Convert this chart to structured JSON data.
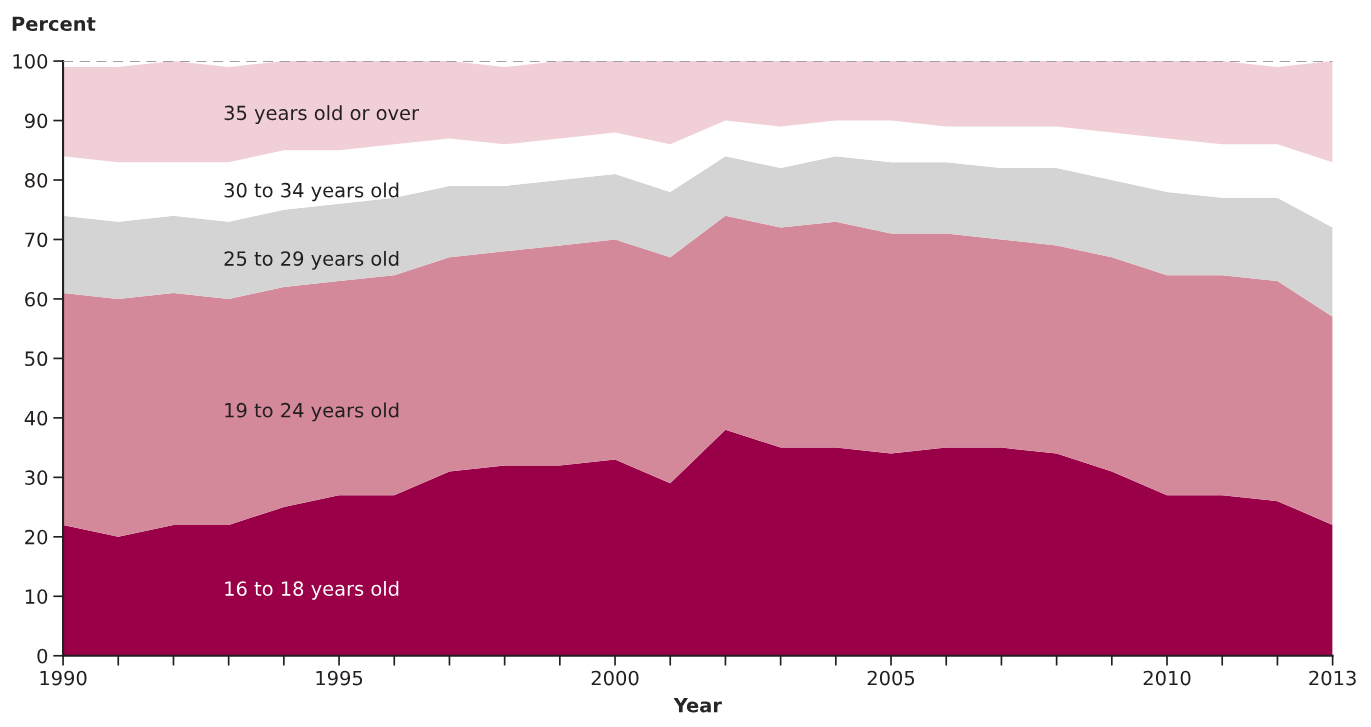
{
  "chart_data": {
    "type": "area",
    "stacked": true,
    "ylabel": "Percent",
    "xlabel": "Year",
    "x": [
      1990,
      1991,
      1992,
      1993,
      1994,
      1995,
      1996,
      1997,
      1998,
      1999,
      2000,
      2001,
      2002,
      2003,
      2004,
      2005,
      2006,
      2007,
      2008,
      2009,
      2010,
      2011,
      2012,
      2013
    ],
    "series": [
      {
        "name": "16 to 18 years old",
        "color": "#990047",
        "values": [
          22,
          20,
          22,
          22,
          25,
          27,
          27,
          31,
          32,
          32,
          33,
          29,
          38,
          35,
          35,
          34,
          35,
          35,
          34,
          31,
          27,
          27,
          26,
          22
        ]
      },
      {
        "name": "19 to 24 years old",
        "color": "#d4899b",
        "values": [
          39,
          40,
          39,
          38,
          37,
          36,
          37,
          36,
          36,
          37,
          37,
          38,
          36,
          37,
          38,
          37,
          36,
          35,
          35,
          36,
          37,
          37,
          37,
          35
        ]
      },
      {
        "name": "25 to 29 years old",
        "color": "#d3d4d3",
        "values": [
          13,
          13,
          13,
          13,
          13,
          13,
          13,
          12,
          11,
          11,
          11,
          11,
          10,
          10,
          11,
          12,
          12,
          12,
          13,
          13,
          14,
          13,
          14,
          15
        ]
      },
      {
        "name": "30 to 34 years old",
        "color": "#ffffff",
        "values": [
          10,
          10,
          9,
          10,
          10,
          9,
          9,
          8,
          7,
          7,
          7,
          8,
          6,
          7,
          6,
          7,
          6,
          7,
          7,
          8,
          9,
          9,
          9,
          11
        ]
      },
      {
        "name": "35 years old or over",
        "color": "#f1cfd6",
        "values": [
          15,
          16,
          17,
          16,
          15,
          15,
          14,
          13,
          13,
          13,
          12,
          14,
          10,
          11,
          10,
          10,
          11,
          11,
          11,
          12,
          13,
          14,
          13,
          17
        ]
      }
    ],
    "xlim": [
      1990,
      2013
    ],
    "xticks": [
      1990,
      {
        "value": 1991,
        "label": null
      },
      {
        "value": 1992,
        "label": null
      },
      {
        "value": 1993,
        "label": null
      },
      {
        "value": 1994,
        "label": null
      },
      1995,
      {
        "value": 1996,
        "label": null
      },
      {
        "value": 1997,
        "label": null
      },
      {
        "value": 1998,
        "label": null
      },
      {
        "value": 1999,
        "label": null
      },
      2000,
      {
        "value": 2001,
        "label": null
      },
      {
        "value": 2002,
        "label": null
      },
      {
        "value": 2003,
        "label": null
      },
      {
        "value": 2004,
        "label": null
      },
      2005,
      {
        "value": 2006,
        "label": null
      },
      {
        "value": 2007,
        "label": null
      },
      {
        "value": 2008,
        "label": null
      },
      {
        "value": 2009,
        "label": null
      },
      2010,
      {
        "value": 2011,
        "label": null
      },
      {
        "value": 2012,
        "label": null
      },
      2013
    ],
    "ylim": [
      0,
      100
    ],
    "yticks": [
      0,
      10,
      20,
      30,
      40,
      50,
      60,
      70,
      80,
      90,
      100
    ],
    "ref_lines": [
      {
        "axis": "y",
        "value": 100,
        "label": null,
        "color": "#a0a0a0",
        "line_style": "dashed"
      }
    ],
    "grid": false,
    "legend": false
  }
}
